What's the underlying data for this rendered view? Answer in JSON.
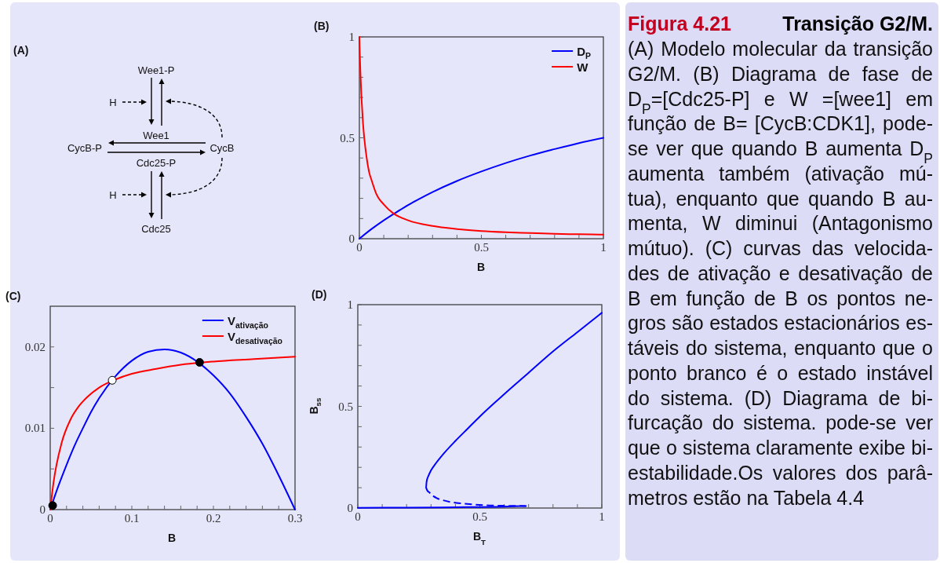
{
  "chart_data": [
    {
      "type": "other",
      "title": "(A)",
      "annotations": [
        "Wee1-P",
        "H",
        "Wee1",
        "CycB-P",
        "CycB",
        "Cdc25-P",
        "H",
        "Cdc25"
      ]
    },
    {
      "type": "line",
      "title": "(B)",
      "xlabel": "B",
      "xlim": [
        0,
        1
      ],
      "ylim": [
        0,
        1
      ],
      "xticks": [
        0,
        {
          "value": 0.1,
          "label": null
        },
        {
          "value": 0.2,
          "label": null
        },
        {
          "value": 0.3,
          "label": null
        },
        {
          "value": 0.4,
          "label": null
        },
        0.5,
        {
          "value": 0.6,
          "label": null
        },
        {
          "value": 0.7,
          "label": null
        },
        {
          "value": 0.8,
          "label": null
        },
        {
          "value": 0.9,
          "label": null
        },
        1
      ],
      "yticks": [
        0,
        {
          "value": 0.1,
          "label": null
        },
        {
          "value": 0.2,
          "label": null
        },
        {
          "value": 0.3,
          "label": null
        },
        {
          "value": 0.4,
          "label": null
        },
        0.5,
        {
          "value": 0.6,
          "label": null
        },
        {
          "value": 0.7,
          "label": null
        },
        {
          "value": 0.8,
          "label": null
        },
        {
          "value": 0.9,
          "label": null
        },
        1
      ],
      "legend": "top right",
      "series": [
        {
          "name": "D$_{P}$",
          "color": "#0000ff",
          "x": [
            0,
            0.05,
            0.1,
            0.15,
            0.2,
            0.25,
            0.3,
            0.4,
            0.5,
            0.6,
            0.7,
            0.8,
            0.9,
            1
          ],
          "values": [
            0,
            0.048,
            0.091,
            0.13,
            0.167,
            0.2,
            0.231,
            0.286,
            0.333,
            0.375,
            0.412,
            0.444,
            0.474,
            0.5
          ]
        },
        {
          "name": "W",
          "color": "#ff0000",
          "x": [
            0,
            0.001,
            0.002,
            0.003,
            0.005,
            0.0075,
            0.01,
            0.015,
            0.02,
            0.03,
            0.04,
            0.05,
            0.07,
            0.1,
            0.14,
            0.2,
            0.3,
            0.4,
            0.5,
            0.6,
            0.7,
            0.8,
            0.9,
            1
          ],
          "values": [
            1,
            0.95,
            0.91,
            0.87,
            0.8,
            0.73,
            0.67,
            0.57,
            0.5,
            0.4,
            0.33,
            0.29,
            0.22,
            0.17,
            0.125,
            0.091,
            0.063,
            0.048,
            0.038,
            0.032,
            0.028,
            0.024,
            0.022,
            0.02
          ]
        }
      ]
    },
    {
      "type": "line",
      "title": "(C)",
      "xlabel": "B",
      "xlim": [
        0,
        0.3
      ],
      "ylim": [
        0,
        0.025
      ],
      "xticks": [
        0,
        {
          "value": 0.02,
          "label": null
        },
        {
          "value": 0.04,
          "label": null
        },
        {
          "value": 0.06,
          "label": null
        },
        {
          "value": 0.08,
          "label": null
        },
        0.1,
        {
          "value": 0.12,
          "label": null
        },
        {
          "value": 0.14,
          "label": null
        },
        {
          "value": 0.16,
          "label": null
        },
        {
          "value": 0.18,
          "label": null
        },
        0.2,
        {
          "value": 0.22,
          "label": null
        },
        {
          "value": 0.24,
          "label": null
        },
        {
          "value": 0.26,
          "label": null
        },
        {
          "value": 0.28,
          "label": null
        },
        0.3
      ],
      "yticks": [
        0,
        {
          "value": 0.005,
          "label": null
        },
        0.01,
        {
          "value": 0.015,
          "label": null
        },
        0.02
      ],
      "legend": "top right",
      "series": [
        {
          "name": "V$_{ativação}$",
          "color": "#0000ff",
          "x": [
            0,
            0.01,
            0.02,
            0.03,
            0.04,
            0.05,
            0.06,
            0.08,
            0.1,
            0.12,
            0.14,
            0.16,
            0.18,
            0.2,
            0.22,
            0.24,
            0.26,
            0.28,
            0.3
          ],
          "values": [
            0,
            0.0029,
            0.0055,
            0.0079,
            0.01,
            0.012,
            0.0137,
            0.0164,
            0.0183,
            0.0194,
            0.0197,
            0.0193,
            0.0182,
            0.0165,
            0.0143,
            0.0114,
            0.0081,
            0.0042,
            0
          ]
        },
        {
          "name": "V$_{desativação}$",
          "color": "#ff0000",
          "x": [
            0,
            0.004,
            0.014,
            0.025,
            0.035,
            0.045,
            0.06,
            0.08,
            0.1,
            0.13,
            0.16,
            0.2,
            0.25,
            0.3
          ],
          "values": [
            0,
            0.0033,
            0.0082,
            0.0111,
            0.0127,
            0.0138,
            0.015,
            0.016,
            0.0167,
            0.0173,
            0.0178,
            0.0182,
            0.0185,
            0.0188
          ]
        },
        {
          "type": "scatter",
          "marker": "circle",
          "color": "#000000",
          "x": [
            0.003,
            0.183
          ],
          "values": [
            0.0005,
            0.0181
          ]
        },
        {
          "type": "scatter",
          "marker": "circle",
          "color": "#ffffff",
          "x": [
            0.076
          ],
          "values": [
            0.0159
          ]
        }
      ]
    },
    {
      "type": "line",
      "title": "(D)",
      "xlabel": "B$_{T}$",
      "ylabel": "B$_{ss}$",
      "xlim": [
        0,
        1
      ],
      "ylim": [
        0,
        1
      ],
      "xticks": [
        0,
        {
          "value": 0.1,
          "label": null
        },
        {
          "value": 0.2,
          "label": null
        },
        {
          "value": 0.3,
          "label": null
        },
        {
          "value": 0.4,
          "label": null
        },
        0.5,
        {
          "value": 0.6,
          "label": null
        },
        {
          "value": 0.7,
          "label": null
        },
        {
          "value": 0.8,
          "label": null
        },
        {
          "value": 0.9,
          "label": null
        },
        1
      ],
      "yticks": [
        0,
        {
          "value": 0.1,
          "label": null
        },
        {
          "value": 0.2,
          "label": null
        },
        {
          "value": 0.3,
          "label": null
        },
        {
          "value": 0.4,
          "label": null
        },
        0.5,
        {
          "value": 0.6,
          "label": null
        },
        {
          "value": 0.7,
          "label": null
        },
        {
          "value": 0.8,
          "label": null
        },
        {
          "value": 0.9,
          "label": null
        },
        1
      ],
      "series": [
        {
          "color": "#0000ff",
          "line_style": "solid",
          "x": [
            0.28,
            0.282,
            0.29,
            0.3,
            0.32,
            0.35,
            0.4,
            0.45,
            0.5,
            0.6,
            0.7,
            0.8,
            0.9,
            1
          ],
          "values": [
            0.1,
            0.13,
            0.16,
            0.185,
            0.22,
            0.265,
            0.33,
            0.39,
            0.45,
            0.56,
            0.665,
            0.77,
            0.865,
            0.96
          ]
        },
        {
          "color": "#0000ff",
          "line_style": "dashed",
          "x": [
            0.28,
            0.284,
            0.293,
            0.308,
            0.325,
            0.35,
            0.378,
            0.432,
            0.539,
            0.689
          ],
          "values": [
            0.1,
            0.088,
            0.077,
            0.06,
            0.048,
            0.038,
            0.03,
            0.022,
            0.013,
            0.01
          ]
        },
        {
          "color": "#0000ff",
          "line_style": "solid",
          "x": [
            0,
            0.2,
            0.4,
            0.6,
            0.689
          ],
          "values": [
            0.001,
            0.002,
            0.004,
            0.007,
            0.01
          ]
        }
      ]
    },
    {
      "type": "other",
      "title": "Figura 4.21",
      "subtitle": "Transição G2/M.",
      "annotations": [
        "(A) Modelo molecular da transição",
        "G2/M. (B) Diagrama de fase de",
        "D$_{P}$=[Cdc25-P] e W =[wee1] em",
        "função de B= [CycB:CDK1], pode-",
        "se ver que quando B aumenta D$_{P}$",
        "aumenta também (ativação mú-",
        "tua), enquanto que quando B au-",
        "menta, W diminui (Antagonismo",
        "mútuo). (C) curvas das velocida-",
        "des de ativação e desativação de",
        "B em função de B os pontos ne-",
        "gros são estados estacionários es-",
        "táveis do sistema, enquanto que o",
        "ponto branco é o estado instável",
        "do sistema. (D) Diagrama de bi-",
        "furcação do sistema. pode-se ver",
        "que o sistema claramente exibe bi-",
        "estabilidade.Os valores dos parâ-",
        "metros estão na Tabela 4.4"
      ]
    }
  ]
}
